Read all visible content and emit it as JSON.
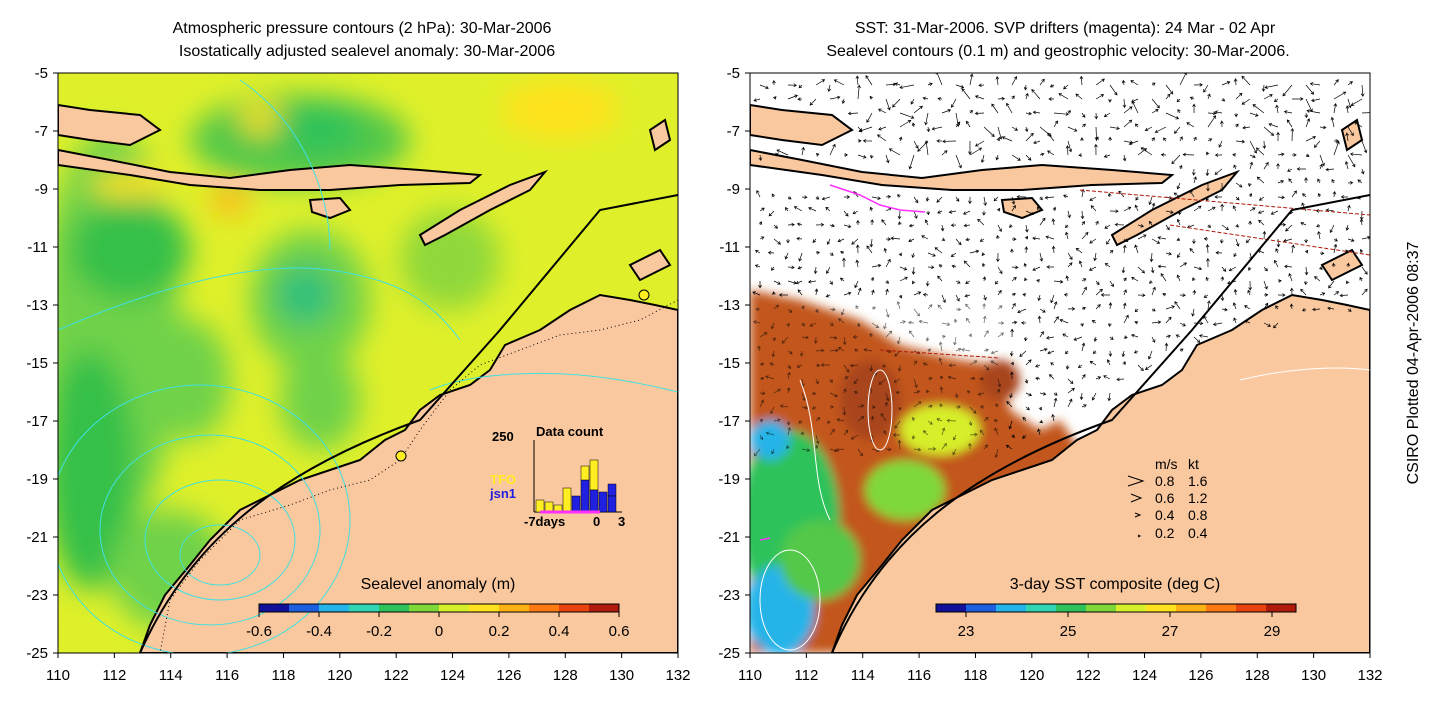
{
  "left_panel": {
    "title_line1": "Atmospheric pressure contours (2 hPa): 30-Mar-2006",
    "title_line2": "Isostatically adjusted sealevel anomaly: 30-Mar-2006",
    "colorbar_label": "Sealevel anomaly (m)",
    "colorbar_ticks": [
      "-0.6",
      "-0.4",
      "-0.2",
      "0",
      "0.2",
      "0.4",
      "0.6"
    ],
    "colorbar_colors": [
      "#10109a",
      "#1e5fe0",
      "#25b4e8",
      "#30d6b4",
      "#2ec25a",
      "#7fd83a",
      "#d6ef2a",
      "#ffe21e",
      "#ffb214",
      "#ff7a10",
      "#e8420e",
      "#b01a0a"
    ],
    "inset": {
      "title": "Data count",
      "y_max": "250",
      "x_labels": [
        "-7days",
        "0",
        "3"
      ],
      "legend": [
        "TFO",
        "jsn1"
      ],
      "legend_colors": [
        "#ffee22",
        "#2020e0"
      ]
    }
  },
  "right_panel": {
    "title_line1": "SST: 31-Mar-2006. SVP drifters (magenta): 24 Mar - 02 Apr",
    "title_line2": "Sealevel contours (0.1 m) and geostrophic velocity: 30-Mar-2006.",
    "colorbar_label": "3-day SST composite (deg C)",
    "colorbar_ticks": [
      "23",
      "25",
      "27",
      "29"
    ],
    "colorbar_colors": [
      "#10109a",
      "#1e5fe0",
      "#25b4e8",
      "#30d6b4",
      "#2ec25a",
      "#7fd83a",
      "#d6ef2a",
      "#ffe21e",
      "#ffb214",
      "#ff7a10",
      "#e8420e",
      "#b01a0a"
    ],
    "velocity_legend": {
      "header": [
        "m/s",
        "kt"
      ],
      "rows": [
        [
          "0.8",
          "1.6"
        ],
        [
          "0.6",
          "1.2"
        ],
        [
          "0.4",
          "0.8"
        ],
        [
          "0.2",
          "0.4"
        ]
      ]
    }
  },
  "axes": {
    "x_ticks": [
      "110",
      "112",
      "114",
      "116",
      "118",
      "120",
      "122",
      "124",
      "126",
      "128",
      "130",
      "132"
    ],
    "y_ticks": [
      "-5",
      "-7",
      "-9",
      "-11",
      "-13",
      "-15",
      "-17",
      "-19",
      "-21",
      "-23",
      "-25"
    ],
    "xlim": [
      110,
      132
    ],
    "ylim": [
      -25,
      -5
    ]
  },
  "credit": "CSIRO Plotted 04-Apr-2006 08:37",
  "colors": {
    "land": "#fac89e",
    "ocean_green": "#6fd24a",
    "ocean_yellow": "#dff02a",
    "contour_cyan": "#40e0e0"
  }
}
